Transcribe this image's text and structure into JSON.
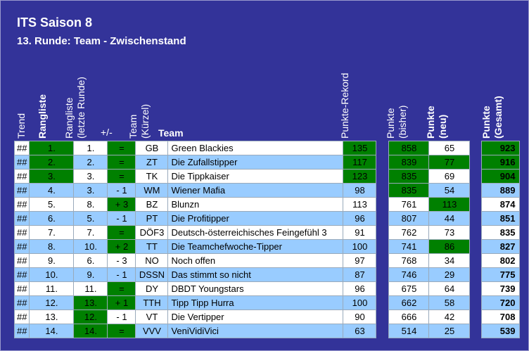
{
  "title": "ITS Saison 8",
  "subtitle": "13. Runde: Team - Zwischenstand",
  "headers": {
    "trend": "Trend",
    "rangliste": "Rangliste",
    "rangliste_letzte_1": "Rangliste",
    "rangliste_letzte_2": "(letzte Runde)",
    "plusminus": "+/-",
    "team_kuerzel_1": "Team",
    "team_kuerzel_2": "(Kürzel)",
    "team": "Team",
    "punkte_rekord": "Punkte-Rekord",
    "punkte_bisher_1": "Punkte",
    "punkte_bisher_2": "(bisher)",
    "punkte_neu_1": "Punkte",
    "punkte_neu_2": "(neu)",
    "punkte_gesamt_1": "Punkte",
    "punkte_gesamt_2": "(Gesamt)"
  },
  "colors": {
    "frame": "#333399",
    "row_white": "#ffffff",
    "row_blue": "#99ccff",
    "highlight": "#008000"
  },
  "rows": [
    {
      "trend": "##",
      "rank": "1.",
      "last": "1.",
      "diff": "=",
      "abbr": "GB",
      "team": "Green Blackies",
      "rekord": "135",
      "bisher": "858",
      "neu": "65",
      "gesamt": "923"
    },
    {
      "trend": "##",
      "rank": "2.",
      "last": "2.",
      "diff": "=",
      "abbr": "ZT",
      "team": "Die Zufallstipper",
      "rekord": "117",
      "bisher": "839",
      "neu": "77",
      "gesamt": "916"
    },
    {
      "trend": "##",
      "rank": "3.",
      "last": "3.",
      "diff": "=",
      "abbr": "TK",
      "team": "Die Tippkaiser",
      "rekord": "123",
      "bisher": "835",
      "neu": "69",
      "gesamt": "904"
    },
    {
      "trend": "##",
      "rank": "4.",
      "last": "3.",
      "diff": "- 1",
      "abbr": "WM",
      "team": "Wiener Mafia",
      "rekord": "98",
      "bisher": "835",
      "neu": "54",
      "gesamt": "889"
    },
    {
      "trend": "##",
      "rank": "5.",
      "last": "8.",
      "diff": "+ 3",
      "abbr": "BZ",
      "team": "Blunzn",
      "rekord": "113",
      "bisher": "761",
      "neu": "113",
      "gesamt": "874"
    },
    {
      "trend": "##",
      "rank": "6.",
      "last": "5.",
      "diff": "- 1",
      "abbr": "PT",
      "team": "Die Profitipper",
      "rekord": "96",
      "bisher": "807",
      "neu": "44",
      "gesamt": "851"
    },
    {
      "trend": "##",
      "rank": "7.",
      "last": "7.",
      "diff": "=",
      "abbr": "DÖF3",
      "team": "Deutsch-österreichisches Feingefühl 3",
      "rekord": "91",
      "bisher": "762",
      "neu": "73",
      "gesamt": "835"
    },
    {
      "trend": "##",
      "rank": "8.",
      "last": "10.",
      "diff": "+ 2",
      "abbr": "TT",
      "team": "Die Teamchefwoche-Tipper",
      "rekord": "100",
      "bisher": "741",
      "neu": "86",
      "gesamt": "827"
    },
    {
      "trend": "##",
      "rank": "9.",
      "last": "6.",
      "diff": "- 3",
      "abbr": "NO",
      "team": "Noch offen",
      "rekord": "97",
      "bisher": "768",
      "neu": "34",
      "gesamt": "802"
    },
    {
      "trend": "##",
      "rank": "10.",
      "last": "9.",
      "diff": "- 1",
      "abbr": "DSSN",
      "team": "Das stimmt so nicht",
      "rekord": "87",
      "bisher": "746",
      "neu": "29",
      "gesamt": "775"
    },
    {
      "trend": "##",
      "rank": "11.",
      "last": "11.",
      "diff": "=",
      "abbr": "DY",
      "team": "DBDT Youngstars",
      "rekord": "96",
      "bisher": "675",
      "neu": "64",
      "gesamt": "739"
    },
    {
      "trend": "##",
      "rank": "12.",
      "last": "13.",
      "diff": "+ 1",
      "abbr": "TTH",
      "team": "Tipp Tipp Hurra",
      "rekord": "100",
      "bisher": "662",
      "neu": "58",
      "gesamt": "720"
    },
    {
      "trend": "##",
      "rank": "13.",
      "last": "12.",
      "diff": "- 1",
      "abbr": "VT",
      "team": "Die Vertipper",
      "rekord": "90",
      "bisher": "666",
      "neu": "42",
      "gesamt": "708"
    },
    {
      "trend": "##",
      "rank": "14.",
      "last": "14.",
      "diff": "=",
      "abbr": "VVV",
      "team": "VeniVidiVici",
      "rekord": "63",
      "bisher": "514",
      "neu": "25",
      "gesamt": "539"
    }
  ]
}
